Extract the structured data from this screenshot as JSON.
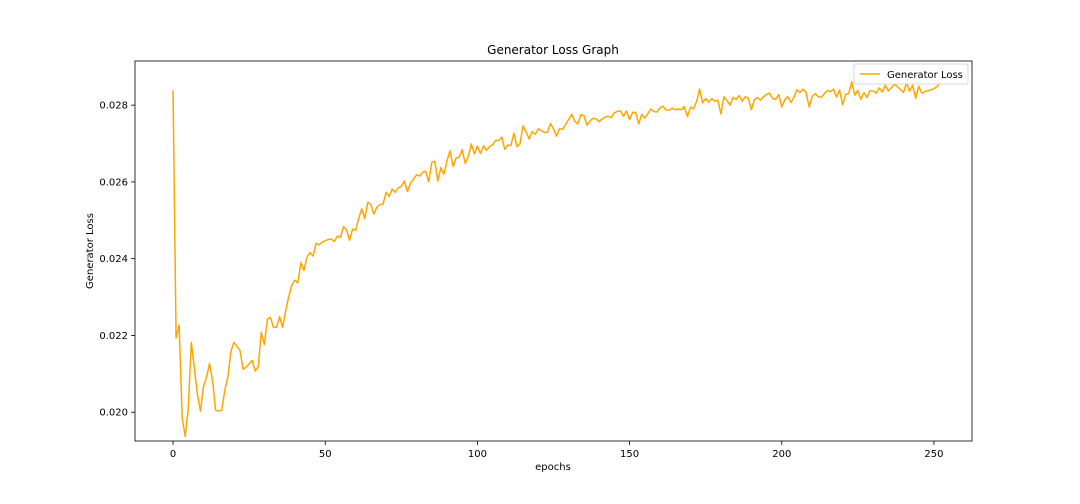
{
  "chart_data": {
    "type": "line",
    "title": "Generator Loss Graph",
    "xlabel": "epochs",
    "ylabel": "Generator Loss",
    "xlim": [
      -12.5,
      262.5
    ],
    "ylim": [
      0.01925,
      0.02915
    ],
    "xticks": [
      0,
      50,
      100,
      150,
      200,
      250
    ],
    "xtick_labels": [
      "0",
      "50",
      "100",
      "150",
      "200",
      "250"
    ],
    "yticks": [
      0.02,
      0.022,
      0.024,
      0.026,
      0.028
    ],
    "ytick_labels": [
      "0.020",
      "0.022",
      "0.024",
      "0.026",
      "0.028"
    ],
    "grid": false,
    "legend_position": "top-right",
    "series": [
      {
        "name": "Generator Loss",
        "color": "#ffa500",
        "x_start": 0,
        "x_step": 1,
        "values": [
          0.02838,
          0.02193,
          0.02227,
          0.01985,
          0.01937,
          0.02009,
          0.02182,
          0.02115,
          0.02047,
          0.02003,
          0.02066,
          0.02091,
          0.02127,
          0.02081,
          0.02005,
          0.02003,
          0.02005,
          0.02057,
          0.02091,
          0.02158,
          0.02182,
          0.02171,
          0.02161,
          0.02112,
          0.02117,
          0.02126,
          0.02135,
          0.02107,
          0.02119,
          0.02208,
          0.02176,
          0.02243,
          0.02247,
          0.02221,
          0.02221,
          0.02249,
          0.02221,
          0.02264,
          0.02301,
          0.02331,
          0.02344,
          0.02337,
          0.0239,
          0.02369,
          0.02404,
          0.02416,
          0.02407,
          0.0244,
          0.02436,
          0.02443,
          0.02447,
          0.0245,
          0.02451,
          0.02445,
          0.02459,
          0.02456,
          0.02483,
          0.02476,
          0.02448,
          0.02477,
          0.02474,
          0.02505,
          0.0253,
          0.02504,
          0.02547,
          0.02541,
          0.02516,
          0.02535,
          0.02541,
          0.02542,
          0.02573,
          0.02562,
          0.02581,
          0.02573,
          0.02585,
          0.02588,
          0.02603,
          0.02575,
          0.02597,
          0.02607,
          0.02619,
          0.02615,
          0.02625,
          0.02628,
          0.026,
          0.02651,
          0.02654,
          0.02602,
          0.02637,
          0.0262,
          0.02655,
          0.02681,
          0.0264,
          0.02662,
          0.02664,
          0.02684,
          0.02648,
          0.02666,
          0.02699,
          0.02673,
          0.02693,
          0.02674,
          0.02694,
          0.02682,
          0.02692,
          0.02697,
          0.02708,
          0.02708,
          0.02717,
          0.02685,
          0.02696,
          0.02695,
          0.02727,
          0.02692,
          0.027,
          0.02746,
          0.0273,
          0.02712,
          0.02731,
          0.02724,
          0.02738,
          0.02734,
          0.02729,
          0.02729,
          0.02752,
          0.02738,
          0.02719,
          0.02739,
          0.02737,
          0.0275,
          0.02763,
          0.02776,
          0.02758,
          0.02751,
          0.02775,
          0.02773,
          0.02748,
          0.02759,
          0.02766,
          0.02764,
          0.02757,
          0.02764,
          0.02769,
          0.02771,
          0.02768,
          0.0278,
          0.02784,
          0.02785,
          0.02771,
          0.02785,
          0.02762,
          0.02781,
          0.02781,
          0.02751,
          0.02776,
          0.02766,
          0.02778,
          0.0279,
          0.02783,
          0.02782,
          0.02793,
          0.02797,
          0.02787,
          0.02787,
          0.02792,
          0.02788,
          0.0279,
          0.02788,
          0.02796,
          0.0277,
          0.02795,
          0.0279,
          0.02809,
          0.02842,
          0.02806,
          0.02817,
          0.02808,
          0.02817,
          0.0281,
          0.02813,
          0.02777,
          0.02822,
          0.02812,
          0.028,
          0.0282,
          0.02815,
          0.02825,
          0.0281,
          0.02822,
          0.02818,
          0.02788,
          0.02814,
          0.0282,
          0.02813,
          0.02822,
          0.02828,
          0.02831,
          0.02817,
          0.02815,
          0.02828,
          0.02795,
          0.02814,
          0.02822,
          0.02807,
          0.02821,
          0.0284,
          0.02833,
          0.02842,
          0.02833,
          0.02795,
          0.02823,
          0.0283,
          0.02822,
          0.0282,
          0.0283,
          0.02838,
          0.02835,
          0.02842,
          0.02821,
          0.02839,
          0.02801,
          0.02828,
          0.0283,
          0.02861,
          0.02826,
          0.02838,
          0.02815,
          0.02833,
          0.0282,
          0.02838,
          0.02837,
          0.02831,
          0.02845,
          0.02834,
          0.02852,
          0.02837,
          0.02845,
          0.02855,
          0.02848,
          0.02841,
          0.02833,
          0.02858,
          0.02836,
          0.02852,
          0.02818,
          0.02849,
          0.02831,
          0.02835,
          0.02837,
          0.0284,
          0.02843,
          0.02848,
          0.02859
        ]
      }
    ]
  }
}
